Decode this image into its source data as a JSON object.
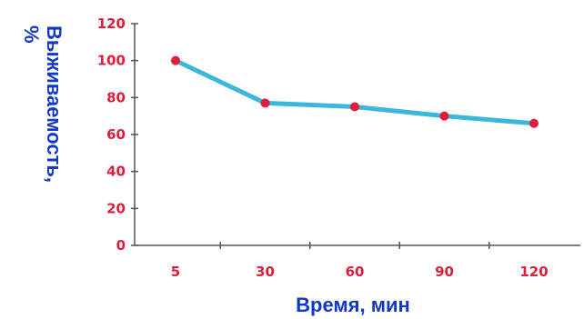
{
  "chart_data": {
    "type": "line",
    "title": "",
    "xlabel": "Время, мин",
    "ylabel": [
      "Выживаемость,",
      "%"
    ],
    "categories": [
      "5",
      "30",
      "60",
      "90",
      "120"
    ],
    "series": [
      {
        "values": [
          100,
          77,
          75,
          70,
          66
        ]
      }
    ],
    "yticks": [
      "0",
      "20",
      "40",
      "60",
      "80",
      "100",
      "120"
    ],
    "ylim": [
      0,
      120
    ],
    "grid": false,
    "legend": "none",
    "colors": {
      "line": "#3bb6dc",
      "marker": "#e01e3a",
      "tick_text": "#e01e3a",
      "axis_label": "#1238c8",
      "axis": "#555555"
    }
  }
}
